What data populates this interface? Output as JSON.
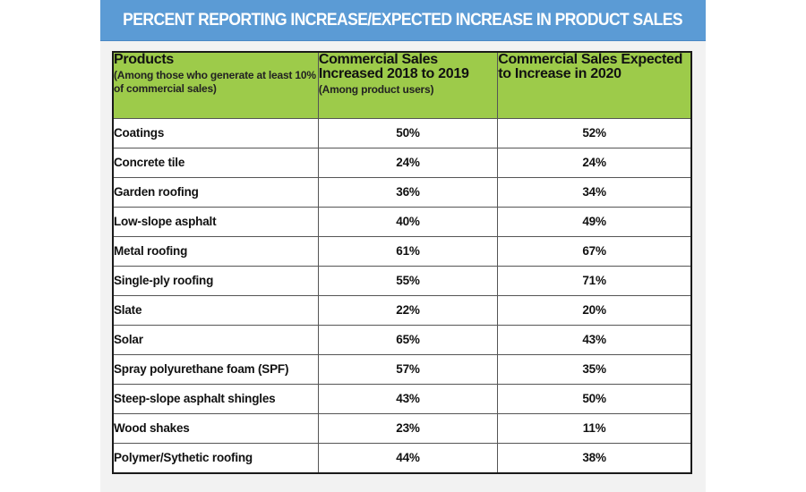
{
  "title": "PERCENT REPORTING INCREASE/EXPECTED INCREASE IN PRODUCT SALES",
  "colors": {
    "banner": "#5b9bd5",
    "header_fill": "#9dcb4a",
    "panel_background": "#f2f2f2",
    "border": "#1a1a1a"
  },
  "columns": [
    {
      "main": "Products",
      "sub": "(Among those who generate at least 10% of commercial sales)"
    },
    {
      "main": "Commercial Sales Increased 2018 to 2019",
      "sub": "(Among product users)"
    },
    {
      "main": "Commercial Sales Expected to Increase in 2020",
      "sub": ""
    }
  ],
  "rows": [
    {
      "product": "Coatings",
      "increased_2018_2019": "50%",
      "expected_2020": "52%"
    },
    {
      "product": "Concrete tile",
      "increased_2018_2019": "24%",
      "expected_2020": "24%"
    },
    {
      "product": "Garden roofing",
      "increased_2018_2019": "36%",
      "expected_2020": "34%"
    },
    {
      "product": "Low-slope asphalt",
      "increased_2018_2019": "40%",
      "expected_2020": "49%"
    },
    {
      "product": "Metal roofing",
      "increased_2018_2019": "61%",
      "expected_2020": "67%"
    },
    {
      "product": "Single-ply roofing",
      "increased_2018_2019": "55%",
      "expected_2020": "71%"
    },
    {
      "product": "Slate",
      "increased_2018_2019": "22%",
      "expected_2020": "20%"
    },
    {
      "product": "Solar",
      "increased_2018_2019": "65%",
      "expected_2020": "43%"
    },
    {
      "product": "Spray polyurethane foam (SPF)",
      "increased_2018_2019": "57%",
      "expected_2020": "35%"
    },
    {
      "product": "Steep-slope asphalt shingles",
      "increased_2018_2019": "43%",
      "expected_2020": "50%"
    },
    {
      "product": "Wood shakes",
      "increased_2018_2019": "23%",
      "expected_2020": "11%"
    },
    {
      "product": "Polymer/Sythetic roofing",
      "increased_2018_2019": "44%",
      "expected_2020": "38%"
    }
  ]
}
